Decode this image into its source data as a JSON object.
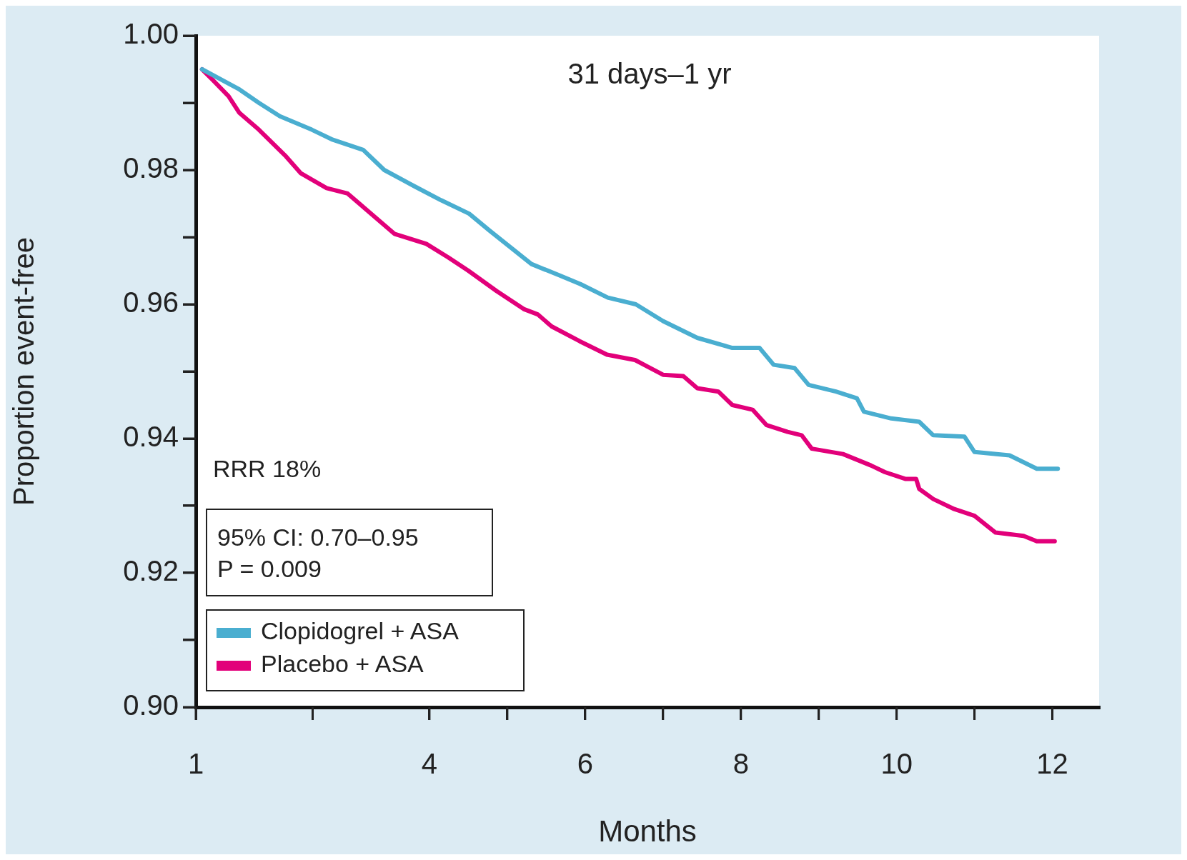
{
  "chart_data": {
    "type": "line",
    "title": "31 days–1 yr",
    "xlabel": "Months",
    "ylabel": "Proportion event-free",
    "annotations": [
      "RRR 18%",
      "95% CI: 0.70–0.95",
      "P = 0.009"
    ],
    "series": [
      {
        "name": "Clopidogrel + ASA",
        "color": "#4aaed0",
        "x": [
          1.08,
          1.56,
          1.81,
          2.08,
          2.49,
          2.76,
          3.15,
          3.42,
          3.82,
          4.15,
          4.51,
          4.77,
          5.04,
          5.31,
          5.67,
          5.94,
          6.29,
          6.65,
          7.0,
          7.44,
          7.89,
          8.24,
          8.42,
          8.69,
          8.87,
          9.22,
          9.49,
          9.58,
          9.93,
          10.29,
          10.47,
          10.87,
          11.0,
          11.45,
          11.8,
          12.07
        ],
        "values": [
          0.995,
          0.992,
          0.99,
          0.988,
          0.986,
          0.9845,
          0.983,
          0.98,
          0.9775,
          0.9755,
          0.9735,
          0.971,
          0.9685,
          0.966,
          0.9643,
          0.963,
          0.961,
          0.96,
          0.9575,
          0.955,
          0.9535,
          0.9535,
          0.951,
          0.9505,
          0.948,
          0.947,
          0.946,
          0.944,
          0.943,
          0.9425,
          0.9405,
          0.9403,
          0.938,
          0.9375,
          0.9355,
          0.9355
        ]
      },
      {
        "name": "Placebo + ASA",
        "color": "#e2007a",
        "x": [
          1.08,
          1.21,
          1.42,
          1.56,
          1.81,
          2.16,
          2.35,
          2.68,
          2.95,
          3.15,
          3.55,
          3.96,
          4.24,
          4.5,
          4.86,
          5.21,
          5.39,
          5.57,
          5.93,
          6.28,
          6.64,
          7.0,
          7.26,
          7.44,
          7.71,
          7.89,
          8.15,
          8.33,
          8.6,
          8.78,
          8.91,
          9.31,
          9.67,
          9.85,
          10.11,
          10.25,
          10.29,
          10.47,
          10.74,
          11.0,
          11.27,
          11.63,
          11.8,
          12.03
        ],
        "values": [
          0.995,
          0.9935,
          0.991,
          0.9885,
          0.986,
          0.982,
          0.9795,
          0.9773,
          0.9765,
          0.9745,
          0.9705,
          0.969,
          0.967,
          0.965,
          0.962,
          0.9593,
          0.9585,
          0.9567,
          0.9545,
          0.9525,
          0.9517,
          0.9495,
          0.9493,
          0.9475,
          0.947,
          0.945,
          0.9443,
          0.942,
          0.941,
          0.9405,
          0.9385,
          0.9377,
          0.936,
          0.935,
          0.934,
          0.934,
          0.9325,
          0.931,
          0.9295,
          0.9285,
          0.926,
          0.9255,
          0.9247,
          0.9247
        ]
      }
    ],
    "xlim": [
      1,
      12.6
    ],
    "xticks": [
      1,
      {
        "value": 2.5,
        "label": null
      },
      4,
      {
        "value": 5,
        "label": null
      },
      6,
      {
        "value": 7,
        "label": null
      },
      8,
      {
        "value": 9,
        "label": null
      },
      10,
      {
        "value": 11,
        "label": null
      },
      12
    ],
    "ylim": [
      0.9,
      1.0
    ],
    "yticks": [
      {
        "value": 0.9,
        "label": "0.90"
      },
      {
        "value": 0.91,
        "label": null
      },
      {
        "value": 0.92,
        "label": "0.92"
      },
      {
        "value": 0.93,
        "label": null
      },
      {
        "value": 0.94,
        "label": "0.94"
      },
      {
        "value": 0.95,
        "label": null
      },
      {
        "value": 0.96,
        "label": "0.96"
      },
      {
        "value": 0.97,
        "label": null
      },
      {
        "value": 0.98,
        "label": "0.98"
      },
      {
        "value": 0.99,
        "label": null
      },
      {
        "value": 1.0,
        "label": "1.00"
      }
    ],
    "grid": false,
    "legend": "bottom left",
    "marker": "none",
    "line_style": "solid"
  }
}
